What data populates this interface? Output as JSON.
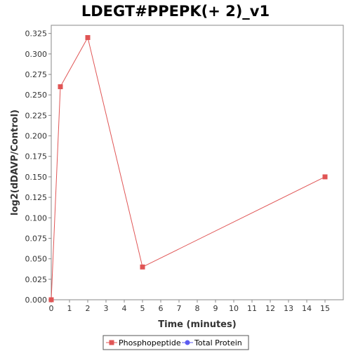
{
  "chart_data": {
    "type": "line",
    "title": "LDEGT#PPEPK(+ 2)_v1",
    "xlabel": "Time (minutes)",
    "ylabel": "log2(dDAVP/Control)",
    "xlim": [
      0,
      16
    ],
    "ylim": [
      0,
      0.335
    ],
    "x_ticks": [
      0,
      1,
      2,
      3,
      4,
      5,
      6,
      7,
      8,
      9,
      10,
      11,
      12,
      13,
      14,
      15
    ],
    "y_ticks": [
      0.0,
      0.025,
      0.05,
      0.075,
      0.1,
      0.125,
      0.15,
      0.175,
      0.2,
      0.225,
      0.25,
      0.275,
      0.3,
      0.325
    ],
    "grid": false,
    "legend_position": "bottom",
    "series": [
      {
        "name": "Phosphopeptide",
        "color": "#e05555",
        "marker": "square",
        "x": [
          0,
          0.5,
          2,
          5,
          15
        ],
        "y": [
          0.0,
          0.26,
          0.32,
          0.04,
          0.15
        ]
      },
      {
        "name": "Total Protein",
        "color": "#5b5bf0",
        "marker": "circle",
        "x": [],
        "y": []
      }
    ]
  }
}
